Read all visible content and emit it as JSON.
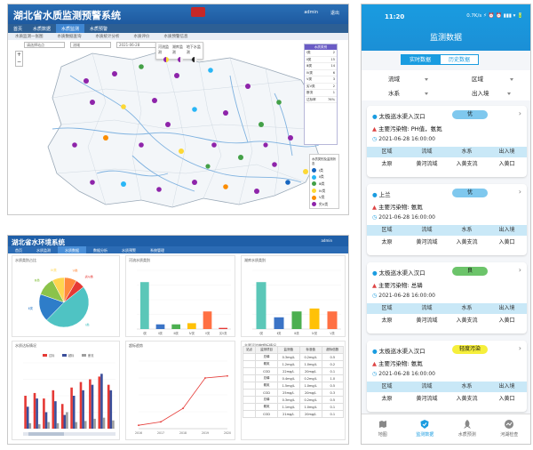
{
  "map_screen": {
    "title": "湖北省水质监测预警系统",
    "nav": [
      "首页",
      "水质数据",
      "水质监测",
      "水质预警"
    ],
    "subnav": [
      "水质监测一张图",
      "水质数据查询",
      "水质统计分析",
      "水质评价",
      "水质预警信息"
    ],
    "filters": [
      "请选择站点",
      "流域",
      "2021-06-28"
    ],
    "query_label": "查询",
    "zoom_in": "+",
    "zoom_out": "−",
    "user_label": "admin",
    "exit_label": "退出",
    "legend_popup": [
      "河流监测",
      "湖库监测",
      "地下水监测"
    ],
    "grade_table": {
      "header": "水质类别",
      "rows": [
        {
          "k": "Ⅰ类",
          "v": "2"
        },
        {
          "k": "Ⅱ类",
          "v": "15"
        },
        {
          "k": "Ⅲ类",
          "v": "14"
        },
        {
          "k": "Ⅳ类",
          "v": "6"
        },
        {
          "k": "Ⅴ类",
          "v": "3"
        },
        {
          "k": "劣Ⅴ类",
          "v": "2"
        },
        {
          "k": "断流",
          "v": "1"
        },
        {
          "k": "达标率",
          "v": "76%"
        }
      ]
    },
    "quality_legend": {
      "title": "水质类别及监测状态",
      "items": [
        {
          "label": "Ⅰ类",
          "color": "#1565c0"
        },
        {
          "label": "Ⅱ类",
          "color": "#29b6f6"
        },
        {
          "label": "Ⅲ类",
          "color": "#43a047"
        },
        {
          "label": "Ⅳ类",
          "color": "#fdd835"
        },
        {
          "label": "Ⅴ类",
          "color": "#fb8c00"
        },
        {
          "label": "劣Ⅴ类",
          "color": "#8e24aa"
        }
      ]
    }
  },
  "dash_screen": {
    "title": "湖北省水环境系统",
    "nav": [
      "首页",
      "水质监测",
      "水质数据",
      "数据分析",
      "水质预警",
      "系统管理"
    ],
    "user": "admin",
    "cards": {
      "pie_title": "水质类别占比",
      "bar1_title": "河流水质类别",
      "bar2_title": "湖库水质类别",
      "group_title": "水质达标情况",
      "line_title": "超标趋势",
      "table_title": "主要污染物超标情况"
    },
    "table": {
      "headers": [
        "站点",
        "监测项目",
        "监测值",
        "标准值",
        "超标倍数"
      ],
      "rows": [
        [
          "",
          "总磷",
          "0.3mg/L",
          "0.2mg/L",
          "0.5"
        ],
        [
          "",
          "氨氮",
          "1.2mg/L",
          "1.0mg/L",
          "0.2"
        ],
        [
          "",
          "COD",
          "22mg/L",
          "20mg/L",
          "0.1"
        ],
        [
          "",
          "总磷",
          "0.4mg/L",
          "0.2mg/L",
          "1.0"
        ],
        [
          "",
          "氨氮",
          "1.5mg/L",
          "1.0mg/L",
          "0.5"
        ],
        [
          "",
          "COD",
          "25mg/L",
          "20mg/L",
          "0.3"
        ],
        [
          "",
          "总磷",
          "0.3mg/L",
          "0.2mg/L",
          "0.5"
        ],
        [
          "",
          "氨氮",
          "1.1mg/L",
          "1.0mg/L",
          "0.1"
        ],
        [
          "",
          "COD",
          "21mg/L",
          "20mg/L",
          "0.1"
        ]
      ]
    }
  },
  "phone": {
    "status_time": "11:20",
    "status_right": "0.7K/s ⚡ ⏰ ⏰ ▮▮▮ ▾ 🔋",
    "title": "监测数据",
    "tabs": [
      "实时数据",
      "历史数据"
    ],
    "filters": {
      "basin": "流域",
      "region": "区域",
      "water_system": "水系",
      "in_out": "出入境"
    },
    "col_headers": [
      "区域",
      "流域",
      "水系",
      "出入境"
    ],
    "stations": [
      {
        "name": "太极巡水渠入汉口",
        "badge": "优",
        "badge_color": "#7fc8ee",
        "pollutant": "主要污染物: PH值，氨氮",
        "time": "2021-06-28 16:00:00",
        "values": [
          "太原",
          "黄河流域",
          "入黄支流",
          "入黄口"
        ]
      },
      {
        "name": "上兰",
        "badge": "优",
        "badge_color": "#7fc8ee",
        "pollutant": "主要污染物: 氨氮",
        "time": "2021-06-28 16:00:00",
        "values": [
          "太原",
          "黄河流域",
          "入黄支流",
          "入黄口"
        ]
      },
      {
        "name": "太极巡水渠入汉口",
        "badge": "良",
        "badge_color": "#6cc46a",
        "pollutant": "主要污染物: 总磷",
        "time": "2021-06-28 16:00:00",
        "values": [
          "太原",
          "黄河流域",
          "入黄支流",
          "入黄口"
        ]
      },
      {
        "name": "太极巡水渠入汉口",
        "badge": "轻度污染",
        "badge_color": "#f6ef3b",
        "pollutant": "主要污染物: 氨氮",
        "time": "2021-06-28 16:00:00",
        "values": [
          "太原",
          "黄河流域",
          "入黄支流",
          "入黄口"
        ]
      }
    ],
    "bottom_nav": [
      {
        "label": "地图",
        "icon": "map-icon"
      },
      {
        "label": "监测数据",
        "icon": "shield-data-icon"
      },
      {
        "label": "水质预测",
        "icon": "rocket-icon"
      },
      {
        "label": "河湖检查",
        "icon": "inspect-icon"
      }
    ],
    "active_tab": "监测数据"
  },
  "chart_data": [
    {
      "type": "pie",
      "title": "水质类别占比",
      "categories": [
        "Ⅰ类",
        "Ⅱ类",
        "Ⅲ类",
        "Ⅳ类",
        "Ⅴ类",
        "劣Ⅴ类"
      ],
      "values": [
        48,
        18,
        12,
        8,
        8,
        6
      ],
      "colors": [
        "#4fc3c3",
        "#2e7dc9",
        "#8bc34a",
        "#ffd54f",
        "#ff8a3d",
        "#e53935"
      ]
    },
    {
      "type": "bar",
      "title": "河流水质类别",
      "categories": [
        "Ⅰ类",
        "Ⅱ类",
        "Ⅲ类",
        "Ⅳ类",
        "Ⅴ类",
        "劣Ⅴ类"
      ],
      "values": [
        80,
        8,
        8,
        10,
        30,
        2
      ],
      "colors": [
        "#5bc7b8",
        "#3a73c6",
        "#4caf50",
        "#ffc107",
        "#ff7043",
        "#e53935"
      ],
      "ylim": [
        0,
        100
      ]
    },
    {
      "type": "bar",
      "title": "湖库水质类别",
      "categories": [
        "Ⅰ类",
        "Ⅱ类",
        "Ⅲ类",
        "Ⅳ类",
        "Ⅴ类"
      ],
      "values": [
        160,
        40,
        60,
        70,
        60
      ],
      "colors": [
        "#5bc7b8",
        "#3a73c6",
        "#4caf50",
        "#ffc107",
        "#ff7043"
      ],
      "ylim": [
        0,
        200
      ]
    },
    {
      "type": "bar",
      "title": "水质达标情况",
      "categories": [
        "1",
        "2",
        "3",
        "4",
        "5",
        "6",
        "7",
        "8",
        "9",
        "10"
      ],
      "series": [
        {
          "name": "达标",
          "values": [
            60,
            65,
            55,
            70,
            45,
            75,
            85,
            90,
            95,
            80
          ],
          "color": "#e53935"
        },
        {
          "name": "超标",
          "values": [
            40,
            55,
            30,
            50,
            25,
            60,
            70,
            80,
            100,
            70
          ],
          "color": "#3a4e9a"
        },
        {
          "name": "断流",
          "values": [
            10,
            8,
            12,
            10,
            30,
            12,
            14,
            18,
            20,
            15
          ],
          "color": "#9e9e9e"
        }
      ],
      "ylim": [
        0,
        120
      ]
    },
    {
      "type": "line",
      "title": "超标趋势",
      "categories": [
        "2016",
        "2017",
        "2018",
        "2019",
        "2020"
      ],
      "values": [
        5,
        10,
        30,
        75,
        78
      ],
      "ylim": [
        0,
        100
      ]
    }
  ]
}
